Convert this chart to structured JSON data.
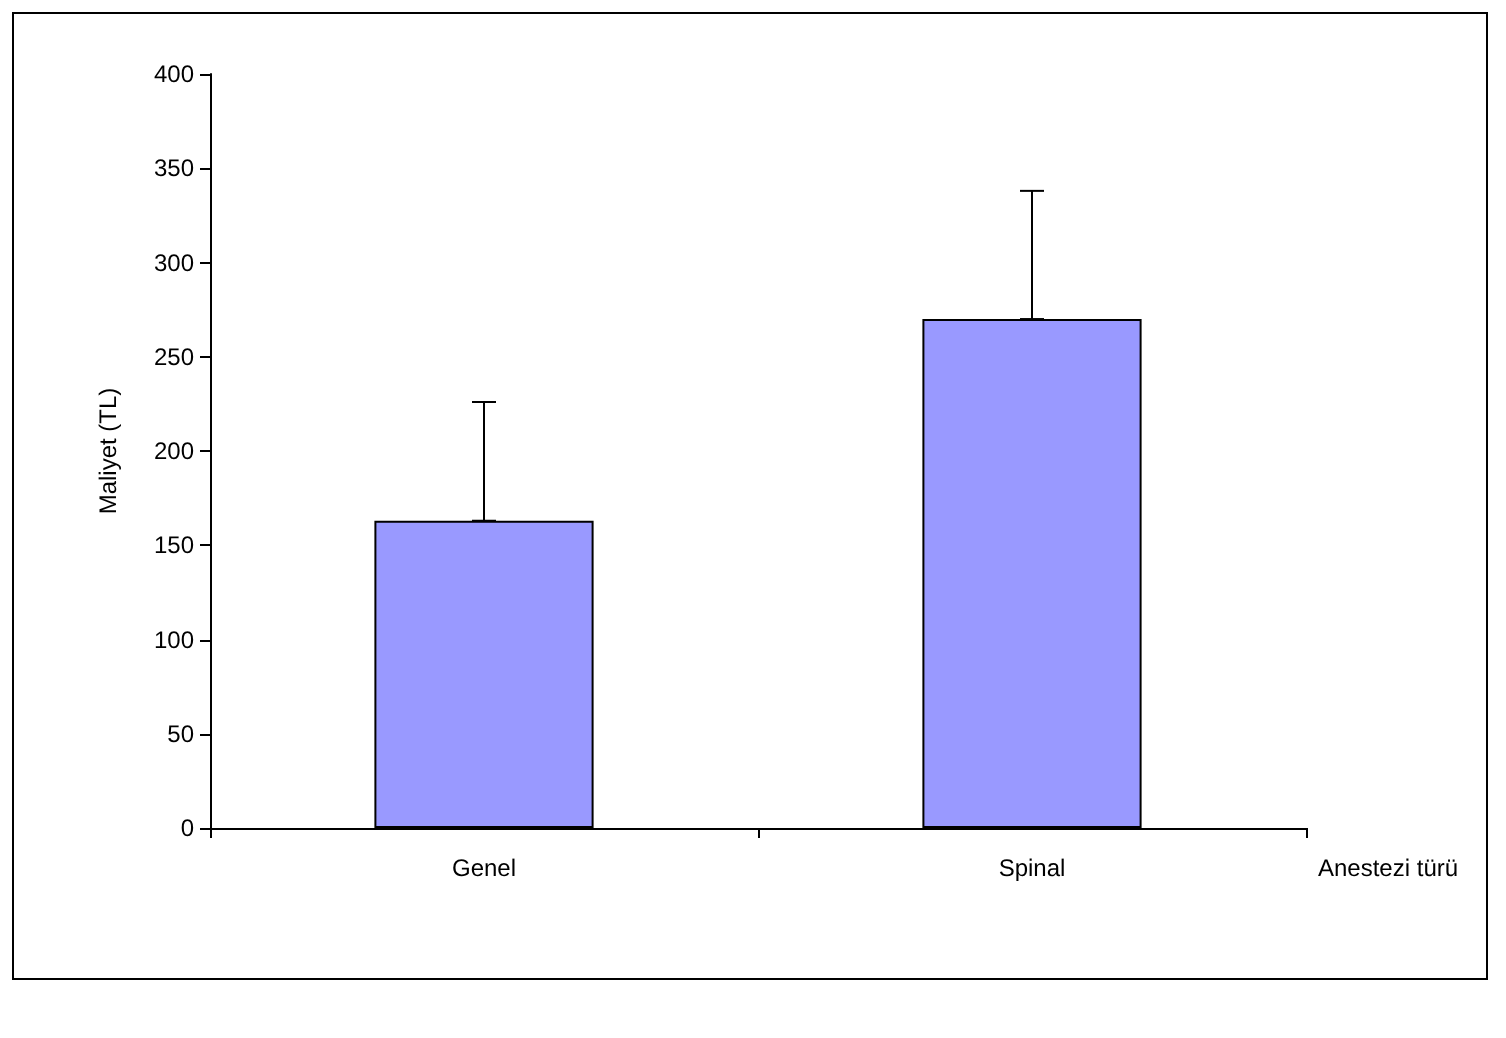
{
  "chart_data": {
    "type": "bar",
    "ylabel": "Maliyet (TL)",
    "xlabel": "Anestezi türü",
    "categories": [
      "Genel",
      "Spinal"
    ],
    "values": [
      163,
      270
    ],
    "errors": [
      [
        163,
        226
      ],
      [
        270,
        338
      ]
    ],
    "color": "#9999ff",
    "ylim": [
      0,
      400
    ],
    "yticks": [
      0,
      50,
      100,
      150,
      200,
      250,
      300,
      350,
      400
    ],
    "grid": false
  }
}
